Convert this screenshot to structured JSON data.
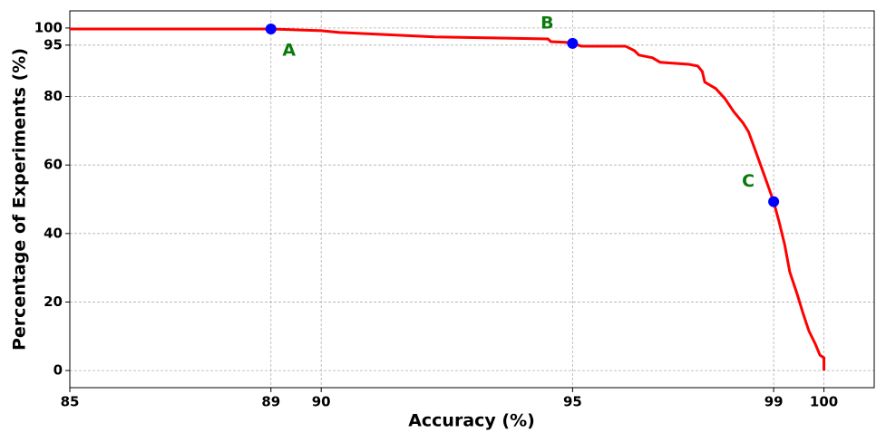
{
  "chart_data": {
    "type": "line",
    "x_label": "Accuracy (%)",
    "y_label": "Percentage of Experiments (%)",
    "xlim": [
      85,
      101
    ],
    "ylim": [
      -5,
      105
    ],
    "xticks": [
      85,
      89,
      90,
      95,
      99,
      100
    ],
    "yticks": [
      0,
      20,
      40,
      60,
      80,
      95,
      100
    ],
    "grid": true,
    "series": [
      {
        "color": "#ff0000",
        "x": [
          85,
          89,
          90,
          90.37,
          91.54,
          92.26,
          93.43,
          94.51,
          94.57,
          94.87,
          95,
          95.18,
          96.05,
          96.23,
          96.32,
          96.59,
          96.74,
          97.31,
          97.49,
          97.58,
          97.63,
          97.85,
          98.03,
          98.21,
          98.39,
          98.5,
          98.6,
          98.75,
          98.86,
          99,
          99.11,
          99.22,
          99.32,
          99.47,
          99.58,
          99.7,
          99.83,
          99.92,
          100,
          100
        ],
        "values": [
          99.7,
          99.7,
          99.2,
          98.7,
          97.9,
          97.4,
          97.1,
          96.8,
          96.0,
          95.8,
          95.5,
          94.7,
          94.7,
          93.4,
          92.1,
          91.3,
          90.0,
          89.4,
          88.9,
          87.3,
          84.2,
          82.3,
          79.4,
          75.5,
          72.3,
          69.7,
          65.7,
          59.6,
          55.1,
          49.3,
          43.3,
          36.7,
          28.8,
          22.2,
          16.9,
          11.6,
          7.7,
          4.5,
          3.7,
          0
        ]
      }
    ],
    "points": {
      "color": "#0000ff",
      "label_color": "#0a7a0a",
      "labels": [
        "A",
        "B",
        "C"
      ],
      "x": [
        89,
        95,
        99
      ],
      "values": [
        99.7,
        95.5,
        49.3
      ]
    }
  }
}
